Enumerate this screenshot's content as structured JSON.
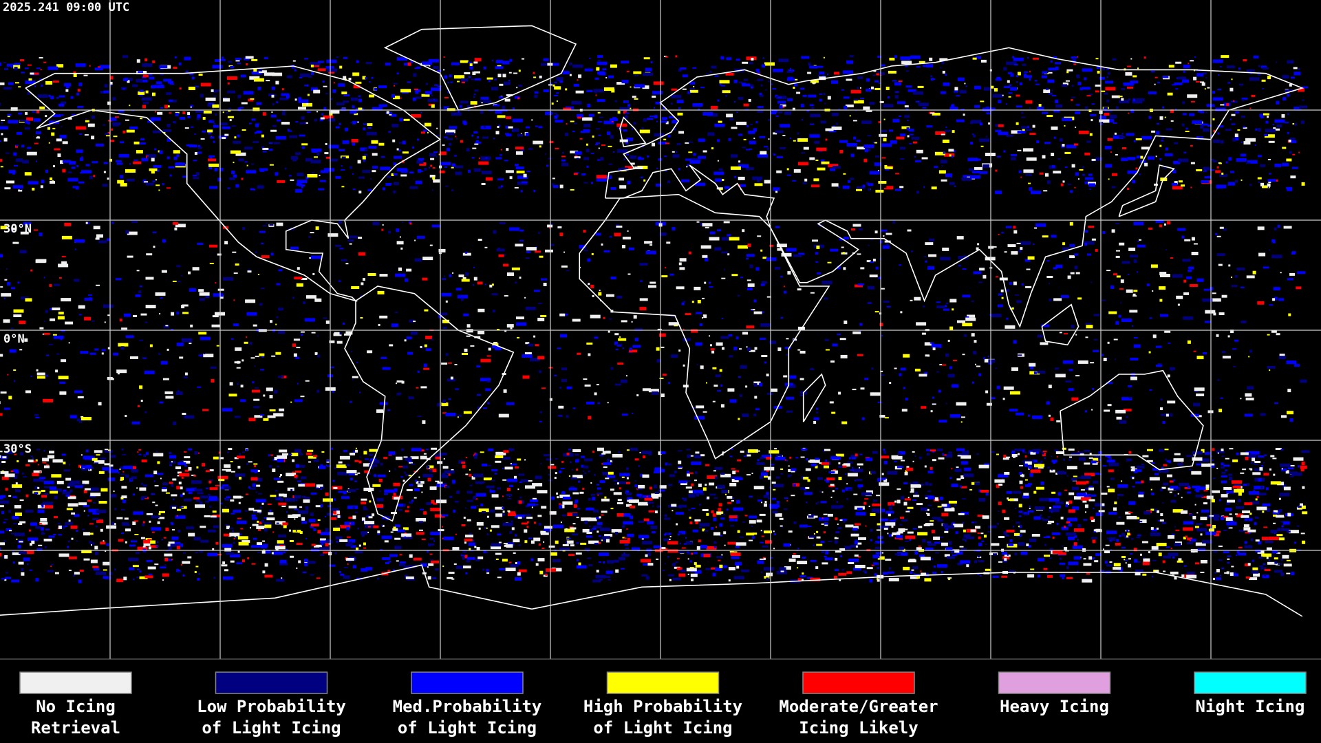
{
  "timestamp": "2025.241 09:00 UTC",
  "latitude_labels": [
    "30°N",
    "0°N",
    "30°S"
  ],
  "legend": [
    {
      "lines": [
        "No Icing",
        "Retrieval"
      ],
      "color": "#f0f0f0"
    },
    {
      "lines": [
        "Low Probability",
        "of Light Icing"
      ],
      "color": "#000080"
    },
    {
      "lines": [
        "Med.Probability",
        "of Light Icing"
      ],
      "color": "#0000ff"
    },
    {
      "lines": [
        "High Probability",
        "of Light Icing"
      ],
      "color": "#ffff00"
    },
    {
      "lines": [
        "Moderate/Greater",
        "Icing Likely"
      ],
      "color": "#ff0000"
    },
    {
      "lines": [
        "Heavy Icing"
      ],
      "color": "#e0a0e0"
    },
    {
      "lines": [
        "Night Icing"
      ],
      "color": "#00ffff"
    }
  ]
}
